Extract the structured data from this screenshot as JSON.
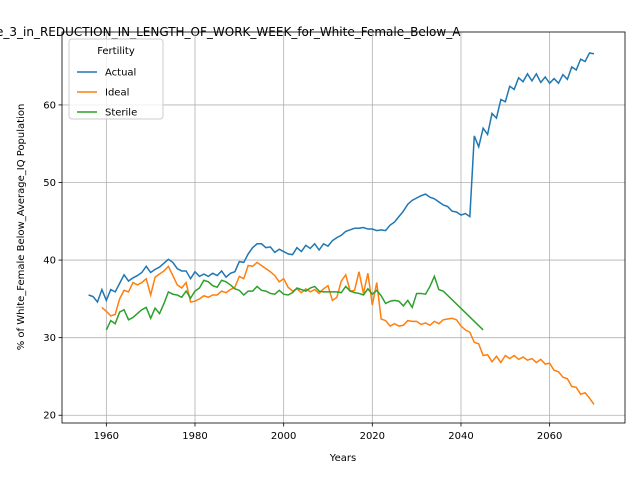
{
  "chart_data": {
    "type": "line",
    "title": "e_3_in_REDUCTION_IN_LENGTH_OF_WORK_WEEK_for_White_Female_Below_A",
    "x_label": "Years",
    "y_label": "% of White_Female Below_Average_IQ Population",
    "legend_title": "Fertility",
    "legend": "upper left",
    "grid": true,
    "xlim": [
      1950,
      2077
    ],
    "ylim": [
      19,
      69.4
    ],
    "xticks": [
      1960,
      1980,
      2000,
      2020,
      2040,
      2060
    ],
    "yticks": [
      20,
      30,
      40,
      50,
      60
    ],
    "series": [
      {
        "name": "Actual",
        "color": "#1f77b4",
        "x": [
          1956,
          1957,
          1958,
          1959,
          1960,
          1961,
          1962,
          1963,
          1964,
          1965,
          1966,
          1967,
          1968,
          1969,
          1970,
          1971,
          1972,
          1973,
          1974,
          1975,
          1976,
          1977,
          1978,
          1979,
          1980,
          1981,
          1982,
          1983,
          1984,
          1985,
          1986,
          1987,
          1988,
          1989,
          1990,
          1991,
          1992,
          1993,
          1994,
          1995,
          1996,
          1997,
          1998,
          1999,
          2000,
          2001,
          2002,
          2003,
          2004,
          2005,
          2006,
          2007,
          2008,
          2009,
          2010,
          2011,
          2012,
          2013,
          2014,
          2015,
          2016,
          2017,
          2018,
          2019,
          2020,
          2021,
          2022,
          2023,
          2024,
          2025,
          2026,
          2027,
          2028,
          2029,
          2030,
          2031,
          2032,
          2033,
          2034,
          2035,
          2036,
          2037,
          2038,
          2039,
          2040,
          2041,
          2042,
          2043,
          2044,
          2045,
          2046,
          2047,
          2048,
          2049,
          2050,
          2051,
          2052,
          2053,
          2054,
          2055,
          2056,
          2057,
          2058,
          2059,
          2060,
          2061,
          2062,
          2063,
          2064,
          2065,
          2066,
          2067,
          2068,
          2069,
          2070
        ],
        "values": [
          35.5,
          35.3,
          34.6,
          36.2,
          34.8,
          36.2,
          35.9,
          37.0,
          38.1,
          37.3,
          37.7,
          38.0,
          38.4,
          39.2,
          38.4,
          38.8,
          39.1,
          39.6,
          40.1,
          39.7,
          38.9,
          38.6,
          38.6,
          37.6,
          38.5,
          37.9,
          38.2,
          37.9,
          38.3,
          38.0,
          38.6,
          37.8,
          38.3,
          38.5,
          39.8,
          39.7,
          40.8,
          41.6,
          42.1,
          42.1,
          41.6,
          41.7,
          41.0,
          41.4,
          41.1,
          40.8,
          40.7,
          41.6,
          41.1,
          41.9,
          41.5,
          42.1,
          41.3,
          42.1,
          41.8,
          42.5,
          42.9,
          43.2,
          43.7,
          43.9,
          44.1,
          44.1,
          44.2,
          44.0,
          44.0,
          43.8,
          43.9,
          43.8,
          44.5,
          44.9,
          45.6,
          46.3,
          47.2,
          47.7,
          48.0,
          48.3,
          48.5,
          48.1,
          47.9,
          47.5,
          47.1,
          46.9,
          46.3,
          46.2,
          45.8,
          46.0,
          45.6,
          56.0,
          54.6,
          57.0,
          56.2,
          58.9,
          58.3,
          60.7,
          60.4,
          62.4,
          62.0,
          63.5,
          63.0,
          64.0,
          63.1,
          64.0,
          62.9,
          63.6,
          62.8,
          63.4,
          62.8,
          63.9,
          63.3,
          64.9,
          64.5,
          65.9,
          65.6,
          66.7,
          66.6
        ]
      },
      {
        "name": "Ideal",
        "color": "#ff7f0e",
        "x": [
          1959,
          1960,
          1961,
          1962,
          1963,
          1964,
          1965,
          1966,
          1967,
          1968,
          1969,
          1970,
          1971,
          1972,
          1973,
          1974,
          1975,
          1976,
          1977,
          1978,
          1979,
          1980,
          1981,
          1982,
          1983,
          1984,
          1985,
          1986,
          1987,
          1988,
          1989,
          1990,
          1991,
          1992,
          1993,
          1994,
          1995,
          1996,
          1997,
          1998,
          1999,
          2000,
          2001,
          2002,
          2003,
          2004,
          2005,
          2006,
          2007,
          2008,
          2009,
          2010,
          2011,
          2012,
          2013,
          2014,
          2015,
          2016,
          2017,
          2018,
          2019,
          2020,
          2021,
          2022,
          2023,
          2024,
          2025,
          2026,
          2027,
          2028,
          2029,
          2030,
          2031,
          2032,
          2033,
          2034,
          2035,
          2036,
          2037,
          2038,
          2039,
          2040,
          2041,
          2042,
          2043,
          2044,
          2045,
          2046,
          2047,
          2048,
          2049,
          2050,
          2051,
          2052,
          2053,
          2054,
          2055,
          2056,
          2057,
          2058,
          2059,
          2060,
          2061,
          2062,
          2063,
          2064,
          2065,
          2066,
          2067,
          2068,
          2069,
          2070
        ],
        "values": [
          33.9,
          33.4,
          32.8,
          33.0,
          35.0,
          36.1,
          35.9,
          37.1,
          36.8,
          37.1,
          37.6,
          35.5,
          37.8,
          38.2,
          38.6,
          39.2,
          38.0,
          36.8,
          36.4,
          37.1,
          34.6,
          34.7,
          35.0,
          35.4,
          35.2,
          35.5,
          35.5,
          36.0,
          35.8,
          36.2,
          36.5,
          37.9,
          37.6,
          39.3,
          39.2,
          39.7,
          39.3,
          38.9,
          38.5,
          38.0,
          37.2,
          37.6,
          36.5,
          36.0,
          36.3,
          35.8,
          36.3,
          35.9,
          36.2,
          35.7,
          36.3,
          36.7,
          34.8,
          35.2,
          37.3,
          38.1,
          36.0,
          36.1,
          38.5,
          35.7,
          38.3,
          34.2,
          37.1,
          32.4,
          32.2,
          31.5,
          31.8,
          31.5,
          31.6,
          32.2,
          32.1,
          32.1,
          31.7,
          31.9,
          31.6,
          32.1,
          31.8,
          32.3,
          32.4,
          32.5,
          32.3,
          31.5,
          31.0,
          30.7,
          29.4,
          29.2,
          27.7,
          27.8,
          26.9,
          27.6,
          26.8,
          27.7,
          27.3,
          27.7,
          27.2,
          27.5,
          27.1,
          27.3,
          26.8,
          27.2,
          26.6,
          26.7,
          25.8,
          25.6,
          24.9,
          24.7,
          23.7,
          23.6,
          22.7,
          22.9,
          22.2,
          21.4
        ]
      },
      {
        "name": "Sterile",
        "color": "#2ca02c",
        "x": [
          1960,
          1961,
          1962,
          1963,
          1964,
          1965,
          1966,
          1967,
          1968,
          1969,
          1970,
          1971,
          1972,
          1973,
          1974,
          1975,
          1976,
          1977,
          1978,
          1979,
          1980,
          1981,
          1982,
          1983,
          1984,
          1985,
          1986,
          1987,
          1988,
          1989,
          1990,
          1991,
          1992,
          1993,
          1994,
          1995,
          1996,
          1997,
          1998,
          1999,
          2000,
          2001,
          2002,
          2003,
          2004,
          2005,
          2006,
          2007,
          2008,
          2009,
          2010,
          2011,
          2012,
          2013,
          2014,
          2015,
          2016,
          2017,
          2018,
          2019,
          2020,
          2021,
          2022,
          2023,
          2024,
          2025,
          2026,
          2027,
          2028,
          2029,
          2030,
          2031,
          2032,
          2033,
          2034,
          2035,
          2036,
          2045
        ],
        "values": [
          31.0,
          32.2,
          31.8,
          33.3,
          33.6,
          32.3,
          32.6,
          33.1,
          33.6,
          33.9,
          32.5,
          33.8,
          33.1,
          34.4,
          35.9,
          35.6,
          35.5,
          35.2,
          36.0,
          35.1,
          36.0,
          36.4,
          37.4,
          37.2,
          36.7,
          36.5,
          37.4,
          37.2,
          36.8,
          36.3,
          36.1,
          35.5,
          36.0,
          36.0,
          36.6,
          36.1,
          36.0,
          35.7,
          35.6,
          36.1,
          35.6,
          35.5,
          35.8,
          36.4,
          36.2,
          36.0,
          36.4,
          36.6,
          36.0,
          35.9,
          35.9,
          35.9,
          35.9,
          35.8,
          36.6,
          36.0,
          35.8,
          35.7,
          35.5,
          36.3,
          35.6,
          36.1,
          35.4,
          34.4,
          34.7,
          34.8,
          34.7,
          34.1,
          34.8,
          33.9,
          35.7,
          35.7,
          35.6,
          36.6,
          37.9,
          36.2,
          36.0,
          31.0
        ]
      }
    ]
  }
}
